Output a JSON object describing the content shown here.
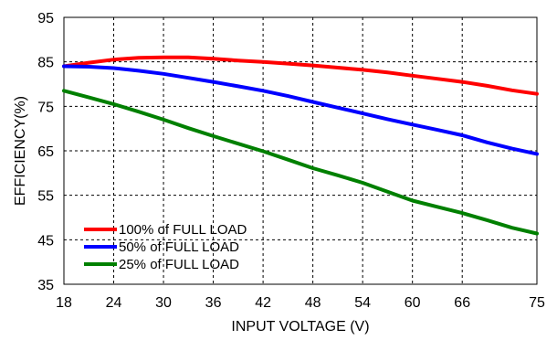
{
  "chart_data": {
    "type": "line",
    "title": "",
    "xlabel": "INPUT VOLTAGE (V)",
    "ylabel": "EFFICIENCY(%)",
    "xlim": [
      18,
      75
    ],
    "ylim": [
      35,
      95
    ],
    "xticks": [
      18,
      24,
      30,
      36,
      42,
      48,
      54,
      60,
      66,
      75
    ],
    "yticks": [
      35,
      45,
      55,
      65,
      75,
      85,
      95
    ],
    "grid": true,
    "legend_position": "bottom-left",
    "series": [
      {
        "name": "100% of FULL LOAD",
        "color": "#ff0000",
        "x": [
          18,
          21,
          24,
          27,
          30,
          33,
          36,
          39,
          42,
          45,
          48,
          51,
          54,
          57,
          60,
          63,
          66,
          69,
          72,
          75
        ],
        "y": [
          84.0,
          84.8,
          85.5,
          85.9,
          86.0,
          86.0,
          85.7,
          85.3,
          85.0,
          84.6,
          84.2,
          83.7,
          83.2,
          82.6,
          81.9,
          81.2,
          80.5,
          79.6,
          78.6,
          77.8
        ]
      },
      {
        "name": "50% of FULL LOAD",
        "color": "#0000ff",
        "x": [
          18,
          21,
          24,
          27,
          30,
          33,
          36,
          39,
          42,
          45,
          48,
          51,
          54,
          57,
          60,
          63,
          66,
          69,
          72,
          75
        ],
        "y": [
          84.0,
          83.9,
          83.6,
          83.0,
          82.3,
          81.4,
          80.5,
          79.5,
          78.5,
          77.3,
          76.0,
          74.7,
          73.4,
          72.1,
          70.9,
          69.7,
          68.5,
          66.9,
          65.5,
          64.3
        ]
      },
      {
        "name": "25% of FULL LOAD",
        "color": "#008000",
        "x": [
          18,
          21,
          24,
          27,
          30,
          33,
          36,
          39,
          42,
          45,
          48,
          51,
          54,
          57,
          60,
          63,
          66,
          69,
          72,
          75
        ],
        "y": [
          78.5,
          77.0,
          75.5,
          73.8,
          72.0,
          70.1,
          68.3,
          66.6,
          64.9,
          63.0,
          61.1,
          59.5,
          57.8,
          55.8,
          53.8,
          52.4,
          51.0,
          49.4,
          47.7,
          46.4
        ]
      }
    ]
  }
}
